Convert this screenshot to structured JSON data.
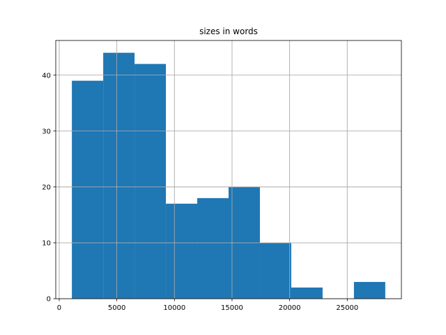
{
  "chart_data": {
    "type": "bar",
    "title": "sizes in words",
    "xlabel": "",
    "ylabel": "",
    "bin_edges": [
      1100,
      3820,
      6540,
      9260,
      11980,
      14700,
      17420,
      20140,
      22860,
      25580,
      28300
    ],
    "counts": [
      39,
      44,
      42,
      17,
      18,
      20,
      10,
      2,
      0,
      3
    ],
    "xlim": [
      -300,
      29700
    ],
    "ylim": [
      0,
      46.2
    ],
    "x_ticks": [
      0,
      5000,
      10000,
      15000,
      20000,
      25000
    ],
    "x_tick_labels": [
      "0",
      "5000",
      "10000",
      "15000",
      "20000",
      "25000"
    ],
    "y_ticks": [
      0,
      10,
      20,
      30,
      40
    ],
    "y_tick_labels": [
      "0",
      "10",
      "20",
      "30",
      "40"
    ],
    "grid": true,
    "bar_color": "#1f77b4",
    "grid_color": "#b0b0b0"
  }
}
